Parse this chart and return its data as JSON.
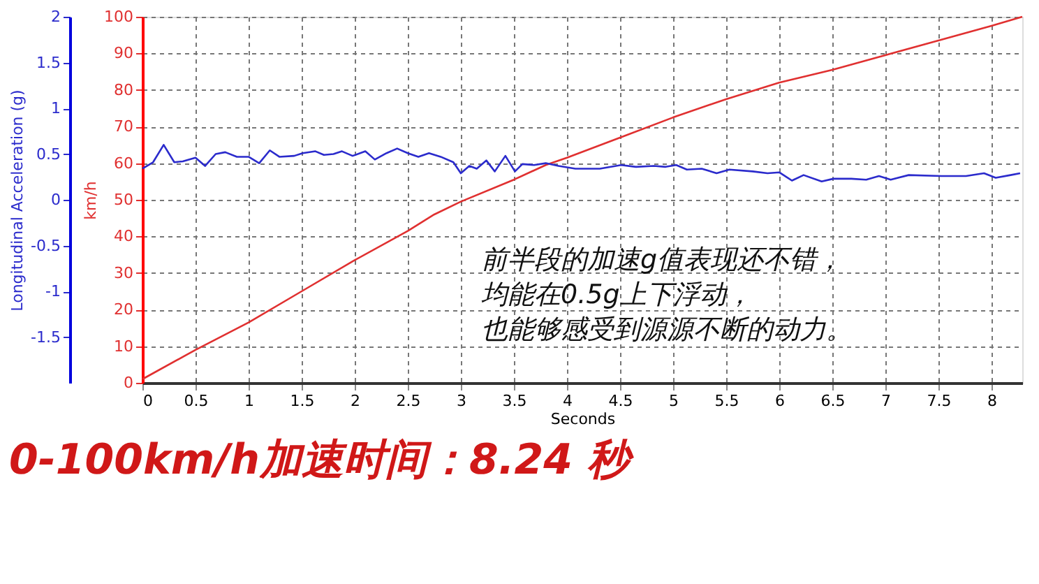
{
  "chart_data": {
    "type": "line",
    "title": "0-100km/h加速时间：8.24 秒",
    "xlabel": "Seconds",
    "ylabel": "km/h",
    "y2label": "Longitudinal Acceleration (g)",
    "annotations": [
      "前半段的加速g值表现还不错，",
      "均能在0.5g上下浮动，",
      "也能够感受到源源不断的动力。"
    ],
    "xlim": [
      0,
      8.29
    ],
    "xticks": [
      0,
      0.5,
      1,
      1.5,
      2,
      2.5,
      3,
      3.5,
      4,
      4.5,
      5,
      5.5,
      6,
      6.5,
      7,
      7.5,
      8
    ],
    "ylim": [
      0,
      100
    ],
    "yticks": [
      0,
      10,
      20,
      30,
      40,
      50,
      60,
      70,
      80,
      90,
      100
    ],
    "y2lim": [
      -2,
      2
    ],
    "y2ticks": [
      -1.5,
      -1,
      -0.5,
      0,
      0.5,
      1,
      1.5,
      2
    ],
    "grid": true,
    "marker": "none",
    "line_style": "solid",
    "series": [
      {
        "color": "#e03030",
        "axis": "y",
        "x": [
          0,
          0.5,
          1,
          1.5,
          2,
          2.5,
          2.75,
          3,
          3.5,
          3.8,
          4,
          4.5,
          5,
          5.5,
          6,
          6.5,
          7,
          7.5,
          8,
          8.29
        ],
        "values": [
          1,
          9,
          16.5,
          25,
          33.5,
          41.5,
          46,
          49.5,
          55.5,
          59.5,
          61.5,
          67,
          72.5,
          77.5,
          82,
          85.5,
          89.5,
          93.5,
          97.5,
          100
        ]
      },
      {
        "color": "#2b2bcc",
        "axis": "y2",
        "x": [
          0,
          0.1,
          0.2,
          0.3,
          0.38,
          0.5,
          0.59,
          0.69,
          0.78,
          0.89,
          1.0,
          1.1,
          1.2,
          1.29,
          1.43,
          1.51,
          1.63,
          1.71,
          1.8,
          1.88,
          1.98,
          2.1,
          2.19,
          2.3,
          2.4,
          2.5,
          2.6,
          2.7,
          2.81,
          2.93,
          3.0,
          3.08,
          3.15,
          3.24,
          3.32,
          3.42,
          3.51,
          3.58,
          3.69,
          3.8,
          3.92,
          4.08,
          4.31,
          4.51,
          4.65,
          4.82,
          4.93,
          5.03,
          5.13,
          5.27,
          5.41,
          5.53,
          5.75,
          5.89,
          6.0,
          6.12,
          6.23,
          6.4,
          6.51,
          6.68,
          6.82,
          6.94,
          7.05,
          7.22,
          7.53,
          7.76,
          7.93,
          8.04,
          8.18,
          8.27
        ],
        "values": [
          0.34,
          0.41,
          0.6,
          0.41,
          0.42,
          0.46,
          0.37,
          0.5,
          0.52,
          0.47,
          0.47,
          0.4,
          0.54,
          0.47,
          0.48,
          0.51,
          0.53,
          0.49,
          0.5,
          0.53,
          0.48,
          0.53,
          0.44,
          0.51,
          0.56,
          0.51,
          0.47,
          0.51,
          0.47,
          0.41,
          0.29,
          0.37,
          0.34,
          0.43,
          0.31,
          0.48,
          0.31,
          0.39,
          0.38,
          0.4,
          0.37,
          0.34,
          0.34,
          0.38,
          0.36,
          0.37,
          0.36,
          0.38,
          0.33,
          0.34,
          0.29,
          0.33,
          0.31,
          0.29,
          0.3,
          0.21,
          0.27,
          0.2,
          0.23,
          0.23,
          0.22,
          0.26,
          0.22,
          0.27,
          0.26,
          0.26,
          0.29,
          0.24,
          0.27,
          0.29
        ]
      }
    ]
  }
}
